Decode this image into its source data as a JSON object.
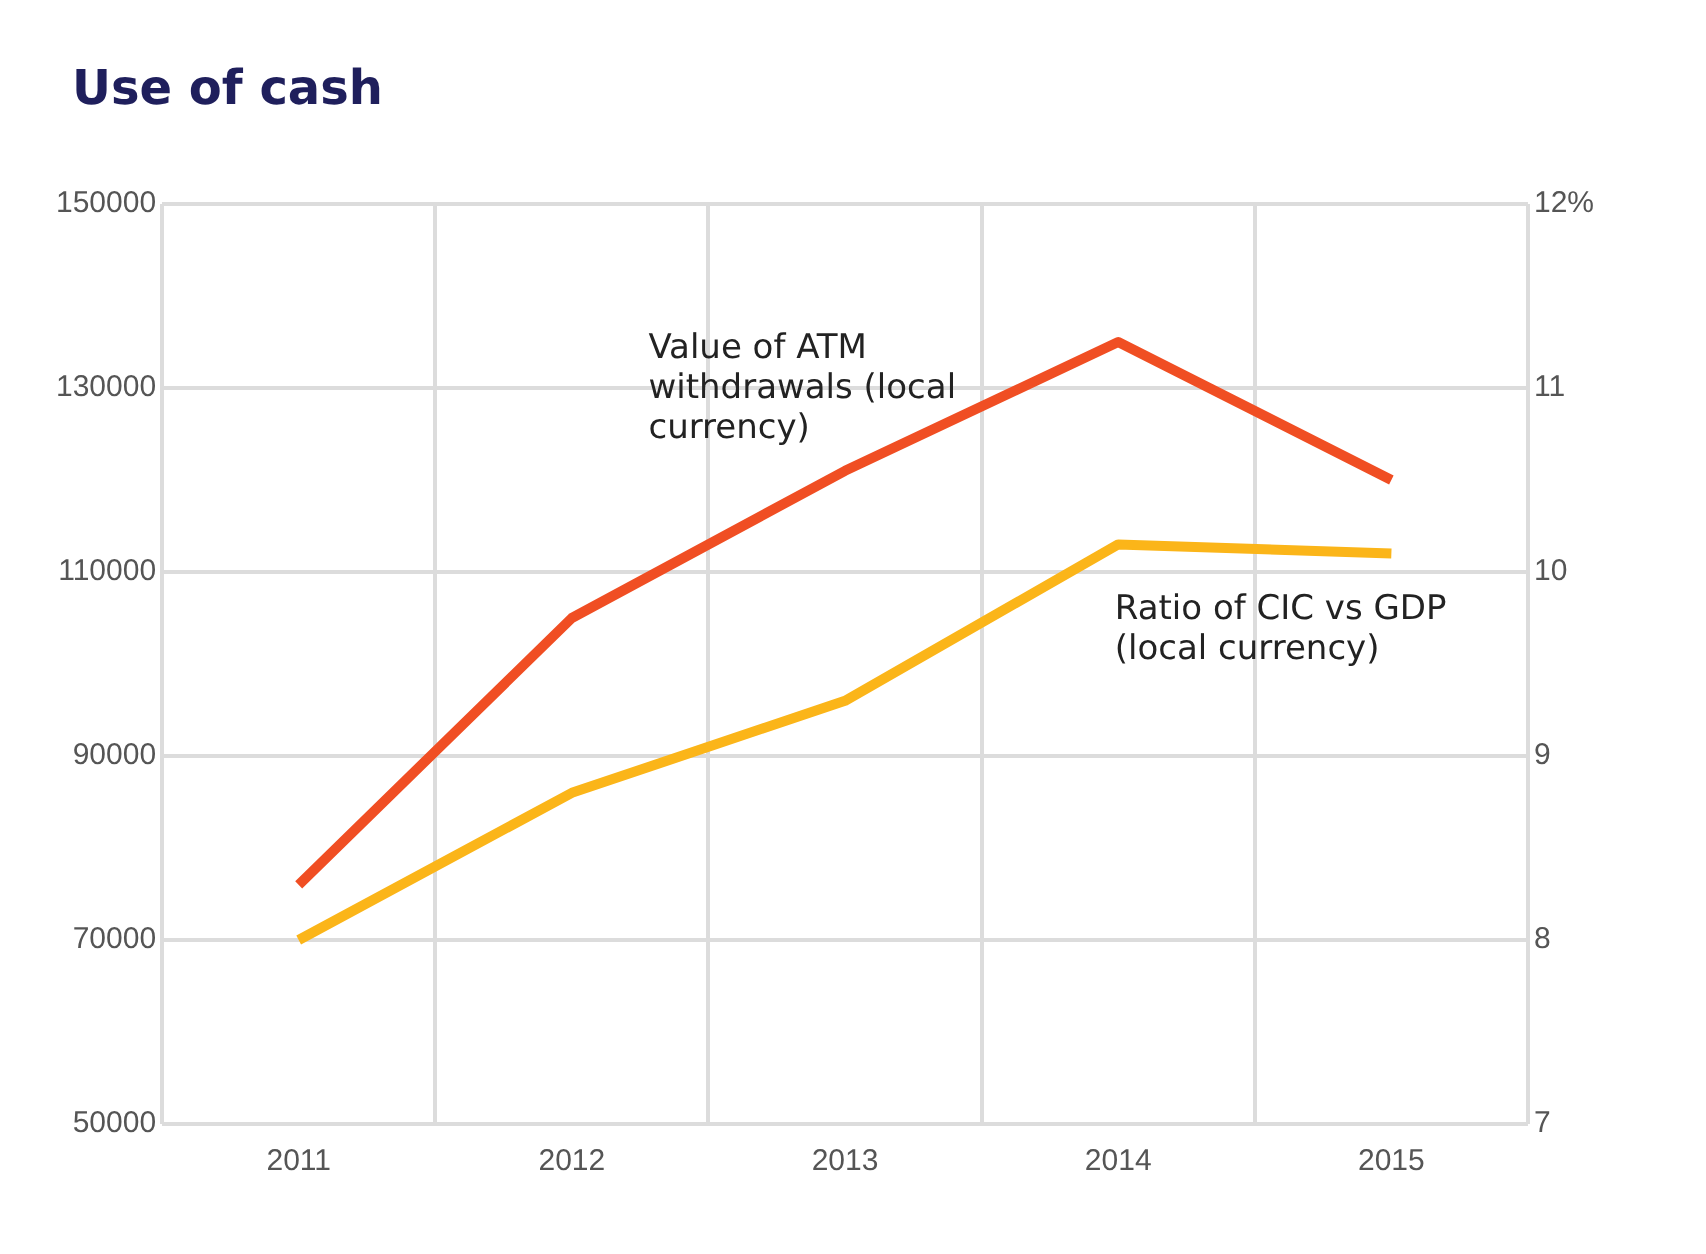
{
  "chart_data": {
    "type": "line",
    "title": "Use of cash",
    "categories": [
      "2011",
      "2012",
      "2013",
      "2014",
      "2015"
    ],
    "series": [
      {
        "name": "Value of ATM withdrawals (local currency)",
        "color": "#f04e23",
        "values": [
          76000,
          105000,
          121000,
          135000,
          120000
        ]
      },
      {
        "name": "Ratio of CIC vs GDP (local currency)",
        "color": "#fbb519",
        "values": [
          8.0,
          8.8,
          9.3,
          10.15,
          10.1
        ],
        "axis": "y2"
      }
    ],
    "ylim": [
      50000,
      150000
    ],
    "yticks": [
      50000,
      70000,
      90000,
      110000,
      130000,
      150000
    ],
    "y2lim": [
      7,
      12
    ],
    "y2ticks": [
      7,
      8,
      9,
      10,
      11,
      {
        "value": 12,
        "label": "12%"
      }
    ],
    "grid": true,
    "legend": false,
    "marker": "none",
    "line_style": "solid"
  }
}
